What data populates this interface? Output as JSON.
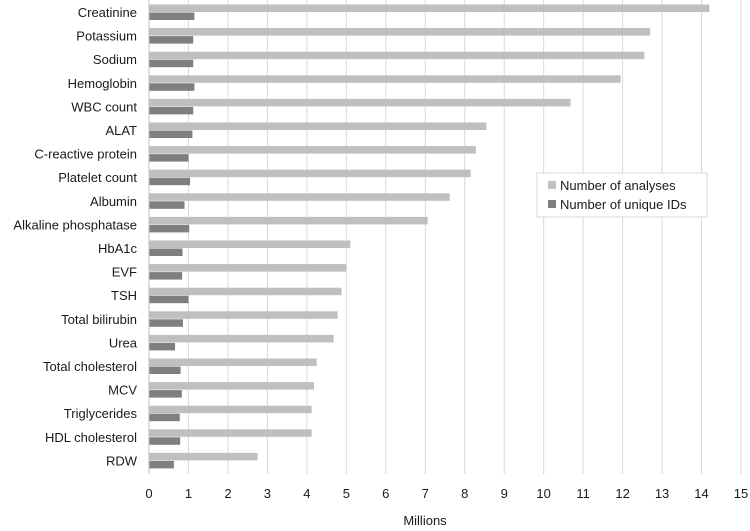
{
  "chart_data": {
    "type": "bar",
    "orientation": "horizontal",
    "categories": [
      "Creatinine",
      "Potassium",
      "Sodium",
      "Hemoglobin",
      "WBC count",
      "ALAT",
      "C-reactive protein",
      "Platelet count",
      "Albumin",
      "Alkaline phosphatase",
      "HbA1c",
      "EVF",
      "TSH",
      "Total bilirubin",
      "Urea",
      "Total cholesterol",
      "MCV",
      "Triglycerides",
      "HDL cholesterol",
      "RDW"
    ],
    "series": [
      {
        "name": "Number of analyses",
        "color": "#bfbfbf",
        "values": [
          14.2,
          12.7,
          12.55,
          11.95,
          10.68,
          8.55,
          8.28,
          8.15,
          7.62,
          7.06,
          5.1,
          5.0,
          4.88,
          4.78,
          4.68,
          4.25,
          4.18,
          4.12,
          4.12,
          2.75
        ]
      },
      {
        "name": "Number of unique IDs",
        "color": "#7f7f7f",
        "values": [
          1.15,
          1.12,
          1.12,
          1.15,
          1.12,
          1.1,
          1.0,
          1.04,
          0.9,
          1.02,
          0.85,
          0.84,
          1.0,
          0.86,
          0.66,
          0.8,
          0.83,
          0.78,
          0.79,
          0.63
        ]
      }
    ],
    "xlabel": "Millions",
    "ylabel": "",
    "xlim": [
      0,
      15
    ],
    "xticks": [
      "0",
      "1",
      "2",
      "3",
      "4",
      "5",
      "6",
      "7",
      "8",
      "9",
      "10",
      "11",
      "12",
      "13",
      "14",
      "15"
    ],
    "grid": "vertical",
    "legend_position": "right"
  }
}
